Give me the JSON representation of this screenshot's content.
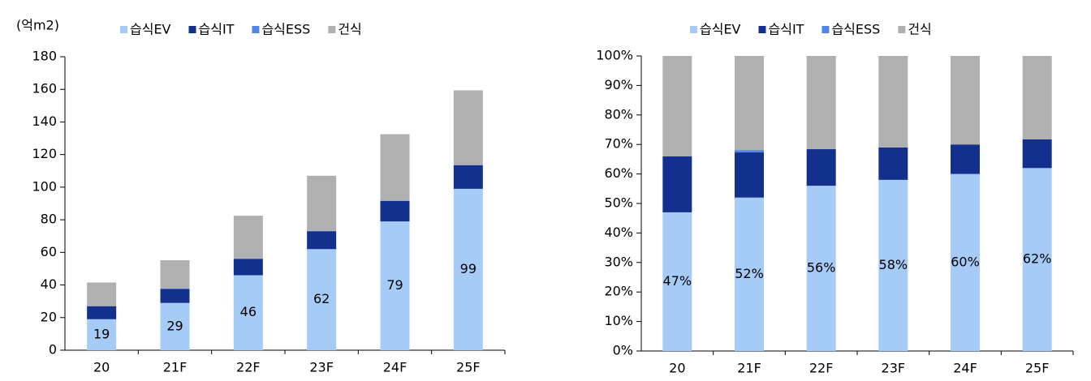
{
  "chart_data": [
    {
      "type": "stacked_bar",
      "y_label": "(억m2)",
      "categories": [
        "20",
        "21F",
        "22F",
        "23F",
        "24F",
        "25F"
      ],
      "series": [
        {
          "name": "습식EV",
          "color": "#a6cbf7",
          "values": [
            19,
            29,
            46,
            62,
            79,
            99
          ],
          "value_labels": [
            "19",
            "29",
            "46",
            "62",
            "79",
            "99"
          ]
        },
        {
          "name": "습식IT",
          "color": "#13318c",
          "values": [
            8,
            8.5,
            10,
            11,
            12.5,
            14.5
          ]
        },
        {
          "name": "습식ESS",
          "color": "#4f86e8",
          "values": [
            0,
            0.3,
            0.2,
            0.2,
            0.2,
            0.2
          ]
        },
        {
          "name": "건식",
          "color": "#b0b0b0",
          "values": [
            14.5,
            17.4,
            26.3,
            33.8,
            40.8,
            45.7
          ]
        }
      ],
      "ylim": [
        0,
        180
      ],
      "yticks": [
        0,
        20,
        40,
        60,
        80,
        100,
        120,
        140,
        160,
        180
      ],
      "grid": false
    },
    {
      "type": "stacked_bar",
      "categories": [
        "20",
        "21F",
        "22F",
        "23F",
        "24F",
        "25F"
      ],
      "series": [
        {
          "name": "습식EV",
          "color": "#a6cbf7",
          "values": [
            47,
            52,
            56,
            58,
            60,
            62
          ],
          "value_labels": [
            "47%",
            "52%",
            "56%",
            "58%",
            "60%",
            "62%"
          ]
        },
        {
          "name": "습식IT",
          "color": "#13318c",
          "values": [
            19,
            15.3,
            12.4,
            11,
            10,
            9.7
          ]
        },
        {
          "name": "습식ESS",
          "color": "#4f86e8",
          "values": [
            0,
            0.8,
            0,
            0,
            0,
            0
          ]
        },
        {
          "name": "건식",
          "color": "#b0b0b0",
          "values": [
            34,
            31.9,
            31.6,
            31,
            30,
            28.3
          ]
        }
      ],
      "ylim": [
        0,
        100
      ],
      "yticks": [
        {
          "value": 0,
          "label": "0%"
        },
        {
          "value": 10,
          "label": "10%"
        },
        {
          "value": 20,
          "label": "20%"
        },
        {
          "value": 30,
          "label": "30%"
        },
        {
          "value": 40,
          "label": "40%"
        },
        {
          "value": 50,
          "label": "50%"
        },
        {
          "value": 60,
          "label": "60%"
        },
        {
          "value": 70,
          "label": "70%"
        },
        {
          "value": 80,
          "label": "80%"
        },
        {
          "value": 90,
          "label": "90%"
        },
        {
          "value": 100,
          "label": "100%"
        }
      ],
      "grid": false
    }
  ]
}
